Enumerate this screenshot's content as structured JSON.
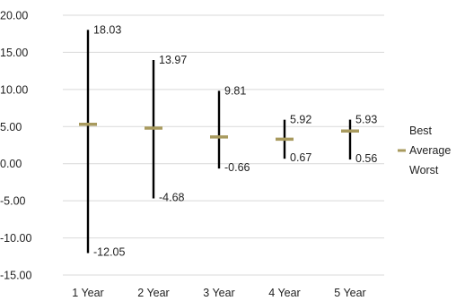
{
  "chart_data": {
    "type": "stock",
    "categories": [
      "1 Year",
      "2 Year",
      "3 Year",
      "4 Year",
      "5 Year"
    ],
    "series": [
      {
        "name": "Best",
        "values": [
          18.03,
          13.97,
          9.81,
          5.92,
          5.93
        ]
      },
      {
        "name": "Average",
        "values": [
          5.3,
          4.8,
          3.6,
          3.3,
          4.4
        ]
      },
      {
        "name": "Worst",
        "values": [
          -12.05,
          -4.68,
          -0.66,
          0.67,
          0.56
        ]
      }
    ],
    "data_labels": {
      "best": [
        "18.03",
        "13.97",
        "9.81",
        "5.92",
        "5.93"
      ],
      "worst": [
        "-12.05",
        "-4.68",
        "-0.66",
        "0.67",
        "0.56"
      ]
    },
    "y_ticks": [
      "20.00",
      "15.00",
      "10.00",
      "5.00",
      "0.00",
      "-5.00",
      "-10.00",
      "-15.00"
    ],
    "ylim": [
      -15,
      20
    ],
    "grid": true,
    "legend": "right",
    "legend_items": [
      "Best",
      "Average",
      "Worst"
    ],
    "colors": {
      "range_line": "#000000",
      "average_marker": "#a89a5e",
      "grid": "#d9d9d9"
    }
  }
}
